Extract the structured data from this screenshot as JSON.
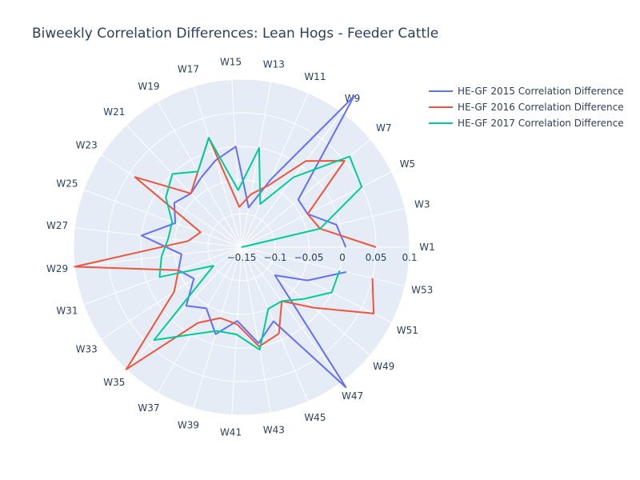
{
  "chart_data": {
    "type": "line",
    "subtype": "polar",
    "title": "Biweekly Correlation Differences: Lean Hogs - Feeder Cattle",
    "theta_direction": "counterclockwise",
    "theta_start": "W1 at 0 degrees (east)",
    "categories": [
      "W1",
      "W3",
      "W5",
      "W7",
      "W9",
      "W11",
      "W13",
      "W15",
      "W17",
      "W19",
      "W21",
      "W23",
      "W25",
      "W27",
      "W29",
      "W31",
      "W33",
      "W35",
      "W37",
      "W39",
      "W41",
      "W43",
      "W45",
      "W47",
      "W49",
      "W51",
      "W53"
    ],
    "radial_range": [
      -0.15,
      0.1
    ],
    "radial_ticks": [
      -0.15,
      -0.1,
      -0.05,
      0,
      0.05,
      0.1
    ],
    "radial_tick_labels": [
      "−0.15",
      "−0.1",
      "−0.05",
      "0",
      "0.05",
      "0.1"
    ],
    "series": [
      {
        "name": "HE-GF 2015 Correlation Difference",
        "color": "#636efa",
        "values": [
          0.005,
          -0.005,
          -0.04,
          -0.04,
          0.13,
          -0.04,
          -0.09,
          0.0,
          -0.015,
          -0.03,
          -0.04,
          -0.03,
          -0.045,
          0.0,
          -0.06,
          -0.05,
          -0.065,
          -0.03,
          -0.045,
          -0.015,
          -0.04,
          -0.005,
          -0.03,
          0.11,
          -0.085,
          -0.04,
          0.01
        ]
      },
      {
        "name": "HE-GF 2016 Correlation Difference",
        "color": "#ef553b",
        "values": [
          0.05,
          -0.03,
          -0.04,
          0.05,
          0.01,
          -0.05,
          -0.07,
          -0.09,
          0.02,
          -0.02,
          -0.04,
          0.04,
          -0.085,
          -0.07,
          0.1,
          -0.05,
          -0.03,
          0.1,
          -0.02,
          -0.04,
          -0.035,
          0.0,
          -0.01,
          -0.05,
          -0.01,
          0.07,
          0.05
        ]
      },
      {
        "name": "HE-GF 2017 Correlation Difference",
        "color": "#00cc96",
        "values": [
          -0.15,
          -0.03,
          0.05,
          0.06,
          -0.02,
          -0.08,
          0.0,
          -0.065,
          0.02,
          -0.02,
          0.0,
          -0.015,
          -0.04,
          -0.04,
          -0.03,
          -0.02,
          -0.1,
          0.04,
          0.0,
          -0.02,
          -0.02,
          0.005,
          -0.05,
          -0.05,
          -0.03,
          0.0,
          0.0
        ]
      }
    ],
    "grid": true,
    "legend_position": "top-right"
  },
  "colors": {
    "plot_background": "#e5ecf6",
    "grid": "#ffffff",
    "text": "#2a3f5f"
  }
}
